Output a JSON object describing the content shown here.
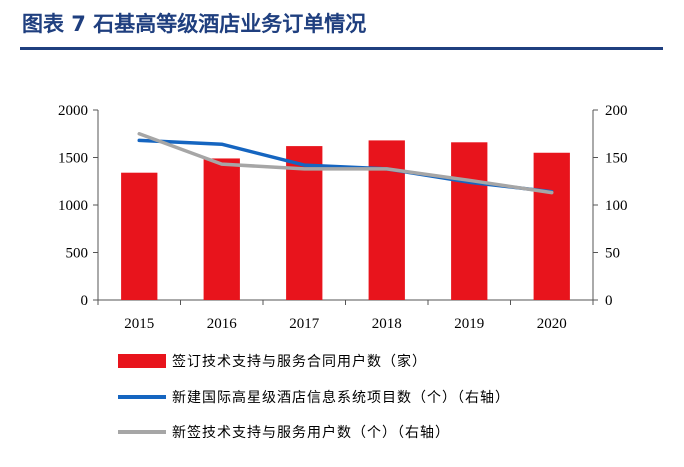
{
  "figure_title": "图表 7  石基高等级酒店业务订单情况",
  "chart_data": {
    "type": "bar",
    "categories": [
      "2015",
      "2016",
      "2017",
      "2018",
      "2019",
      "2020"
    ],
    "series": [
      {
        "name": "签订技术支持与服务合同用户数（家）",
        "type": "bar",
        "axis": "left",
        "color": "#e8141c",
        "values": [
          1340,
          1490,
          1620,
          1680,
          1660,
          1550
        ]
      },
      {
        "name": "新建国际高星级酒店信息系统项目数（个）（右轴）",
        "type": "line",
        "axis": "right",
        "color": "#1565c0",
        "values": [
          168,
          164,
          142,
          138,
          124,
          114
        ]
      },
      {
        "name": "新签技术支持与服务用户数（个）（右轴）",
        "type": "line",
        "axis": "right",
        "color": "#a6a6a6",
        "values": [
          175,
          143,
          138,
          138,
          126,
          113
        ]
      }
    ],
    "left_axis": {
      "ylim": [
        0,
        2000
      ],
      "ticks": [
        0,
        500,
        1000,
        1500,
        2000
      ]
    },
    "right_axis": {
      "ylim": [
        0,
        200
      ],
      "ticks": [
        0,
        50,
        100,
        150,
        200
      ]
    },
    "legend_placement": "bottom",
    "grid": false
  }
}
